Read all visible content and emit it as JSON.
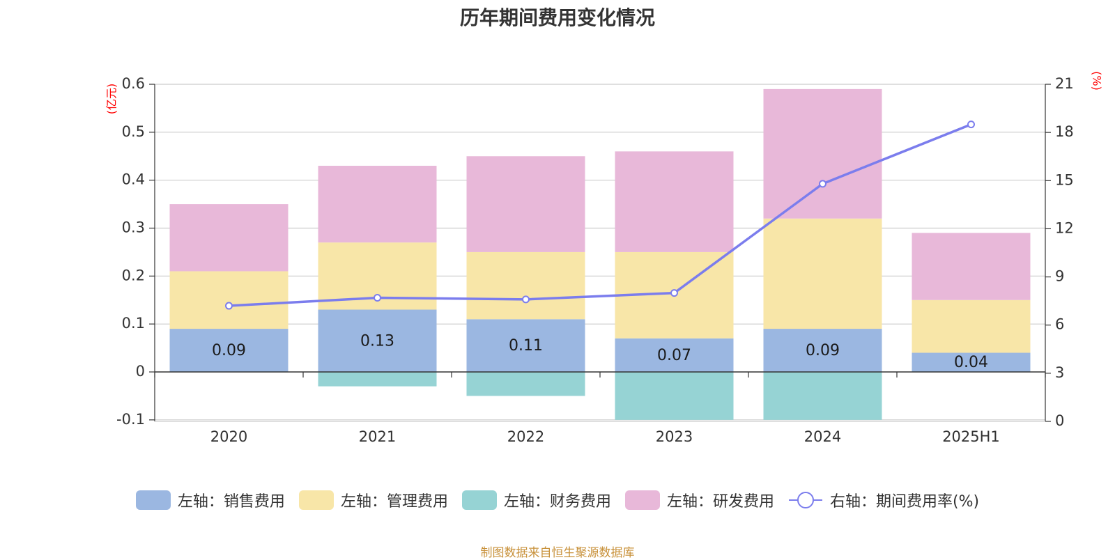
{
  "chart_data": {
    "type": "bar",
    "title": "历年期间费用变化情况",
    "categories": [
      "2020",
      "2021",
      "2022",
      "2023",
      "2024",
      "2025H1"
    ],
    "left_axis": {
      "unit": "(亿元)",
      "ylim": [
        -0.1,
        0.6
      ],
      "ticks": [
        "0.6",
        "0.5",
        "0.4",
        "0.3",
        "0.2",
        "0.1",
        "0",
        "-0.1"
      ]
    },
    "right_axis": {
      "unit": "(%)",
      "ylim": [
        0,
        21
      ],
      "ticks": [
        "21",
        "18",
        "15",
        "12",
        "9",
        "6",
        "3",
        "0"
      ]
    },
    "series": [
      {
        "name": "左轴：销售费用",
        "type": "bar",
        "color": "#9bb7e1",
        "values": [
          0.09,
          0.13,
          0.11,
          0.07,
          0.09,
          0.04
        ],
        "labels": [
          "0.09",
          "0.13",
          "0.11",
          "0.07",
          "0.09",
          "0.04"
        ]
      },
      {
        "name": "左轴：管理费用",
        "type": "bar",
        "color": "#f8e6a8",
        "values": [
          0.12,
          0.14,
          0.14,
          0.18,
          0.23,
          0.11
        ]
      },
      {
        "name": "左轴：财务费用",
        "type": "bar",
        "color": "#96d3d4",
        "values": [
          0,
          -0.03,
          -0.05,
          -0.1,
          -0.1,
          0
        ]
      },
      {
        "name": "左轴：研发费用",
        "type": "bar",
        "color": "#e8b8d9",
        "values": [
          0.14,
          0.16,
          0.2,
          0.21,
          0.27,
          0.14
        ]
      },
      {
        "name": "右轴：期间费用率(%)",
        "type": "line",
        "color": "#7b7ded",
        "values": [
          7.2,
          7.7,
          7.6,
          8.0,
          14.8,
          18.5
        ]
      }
    ],
    "grid": true,
    "legend_position": "bottom"
  },
  "source_note": "制图数据来自恒生聚源数据库"
}
